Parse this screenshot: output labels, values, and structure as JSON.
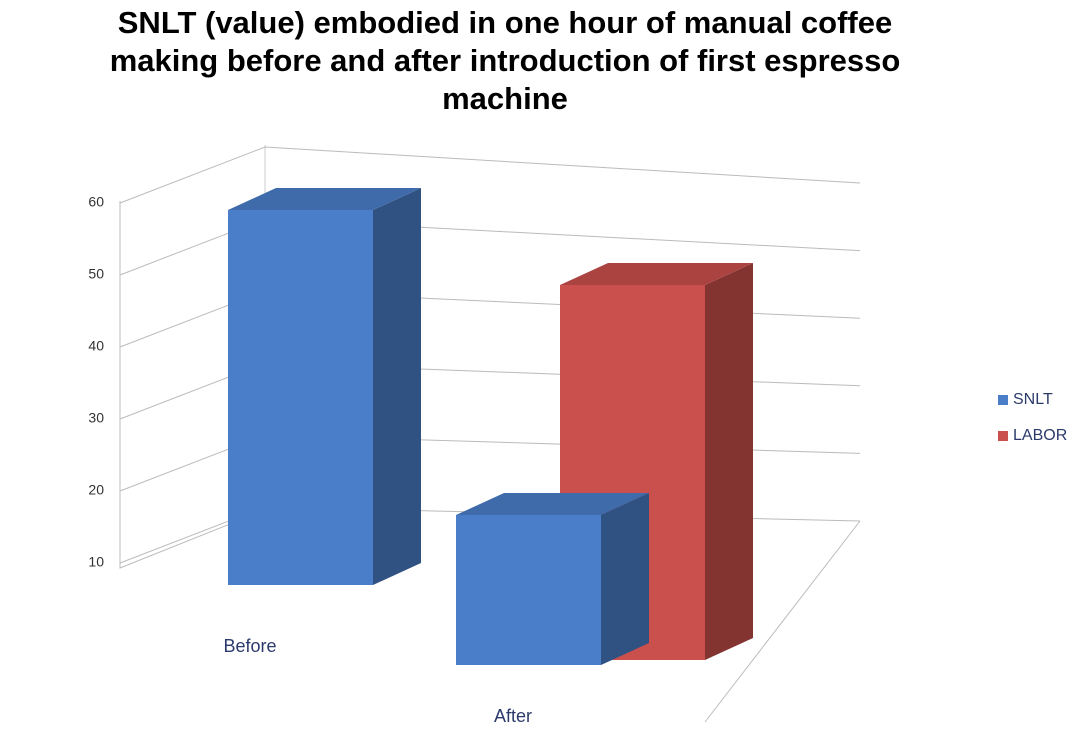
{
  "chart_data": {
    "type": "bar3d",
    "title": "SNLT (value) embodied in one hour of manual coffee making before and after introduction of first espresso machine",
    "categories": [
      "Before",
      "After"
    ],
    "series": [
      {
        "name": "SNLT",
        "color": "#4a7ec8",
        "values": [
          60,
          30
        ]
      },
      {
        "name": "LABOR",
        "color": "#c9504c",
        "values": [
          null,
          60
        ]
      }
    ],
    "ylim": [
      10,
      60
    ],
    "yticks": [
      10,
      20,
      30,
      40,
      50,
      60
    ],
    "grid": true,
    "legend": "right"
  }
}
